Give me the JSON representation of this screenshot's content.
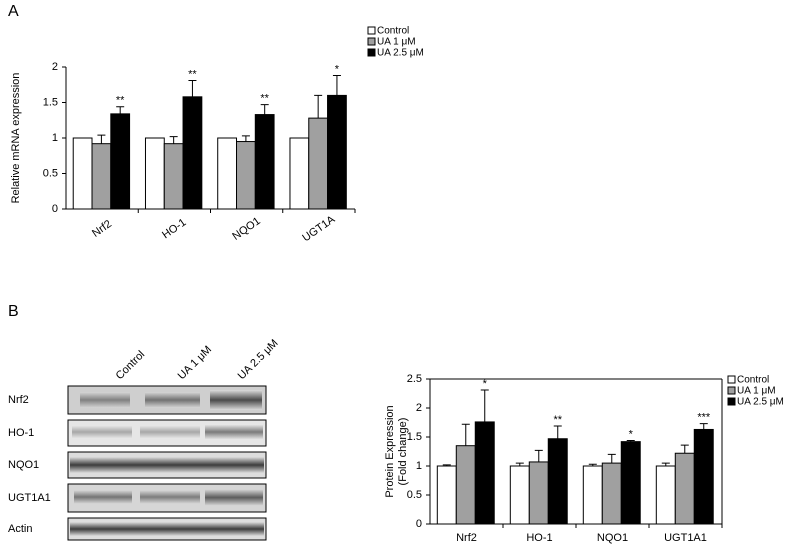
{
  "panels": {
    "a": "A",
    "b": "B"
  },
  "blot": {
    "columns": [
      "Control",
      "UA 1 μM",
      "UA 2.5 μM"
    ],
    "rows": [
      "Nrf2",
      "HO-1",
      "NQO1",
      "UGT1A1",
      "Actin"
    ]
  },
  "chart_data": [
    {
      "type": "bar",
      "ylabel": "Relative mRNA expression",
      "categories": [
        "Nrf2",
        "HO-1",
        "NQO1",
        "UGT1A"
      ],
      "series": [
        {
          "name": "Control",
          "color": "#ffffff",
          "values": [
            1,
            1,
            1,
            1
          ]
        },
        {
          "name": "UA 1 μM",
          "color": "#a0a0a0",
          "values": [
            0.92,
            0.92,
            0.95,
            1.28
          ],
          "errors": [
            0.12,
            0.1,
            0.08,
            0.32
          ]
        },
        {
          "name": "UA 2.5 μM",
          "color": "#000000",
          "values": [
            1.34,
            1.58,
            1.33,
            1.6
          ],
          "errors": [
            0.1,
            0.23,
            0.14,
            0.28
          ]
        }
      ],
      "annotations": [
        "**",
        "**",
        "**",
        "*"
      ],
      "ylim": [
        0,
        2
      ],
      "yticks": [
        0,
        0.5,
        1,
        1.5,
        2
      ],
      "box": false
    },
    {
      "type": "bar",
      "ylabel": [
        "Protein Expression",
        "(Fold change)"
      ],
      "categories": [
        "Nrf2",
        "HO-1",
        "NQO1",
        "UGT1A1"
      ],
      "series": [
        {
          "name": "Control",
          "color": "#ffffff",
          "values": [
            1,
            1,
            1,
            1
          ],
          "errors": [
            0.02,
            0.05,
            0.03,
            0.05
          ]
        },
        {
          "name": "UA 1 μM",
          "color": "#a0a0a0",
          "values": [
            1.35,
            1.07,
            1.05,
            1.22
          ],
          "errors": [
            0.37,
            0.2,
            0.15,
            0.14
          ]
        },
        {
          "name": "UA 2.5 μM",
          "color": "#000000",
          "values": [
            1.76,
            1.47,
            1.42,
            1.63
          ],
          "errors": [
            0.55,
            0.22,
            0.02,
            0.1
          ]
        }
      ],
      "annotations": [
        "*",
        "**",
        "*",
        "***"
      ],
      "ylim": [
        0,
        2.5
      ],
      "yticks": [
        0,
        0.5,
        1,
        1.5,
        2,
        2.5
      ],
      "box": true
    }
  ]
}
